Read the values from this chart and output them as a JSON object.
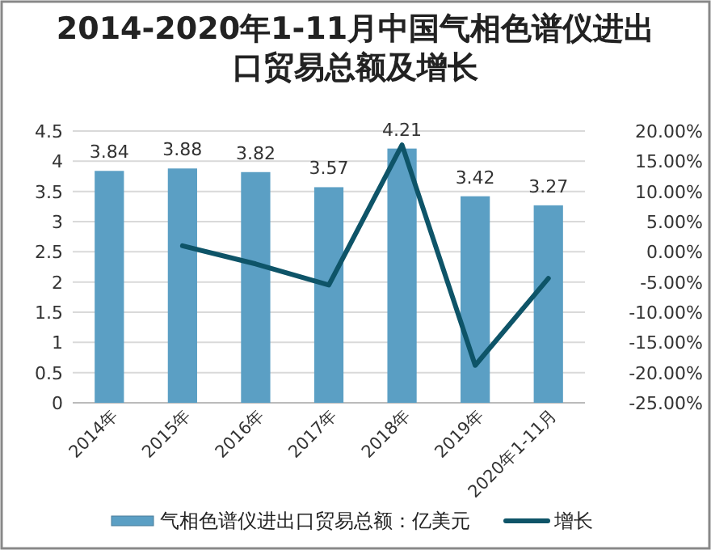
{
  "chart_data": {
    "type": "bar",
    "title": "2014-2020年1-11月中国气相色谱仪进出口贸易总额及增长",
    "categories": [
      "2014年",
      "2015年",
      "2016年",
      "2017年",
      "2018年",
      "2019年",
      "2020年1-11月"
    ],
    "series": [
      {
        "name": "气相色谱仪进出口贸易总额：亿美元",
        "color": "#5b9fc4",
        "values": [
          3.84,
          3.88,
          3.82,
          3.57,
          4.21,
          3.42,
          3.27
        ],
        "value_labels": [
          "3.84",
          "3.88",
          "3.82",
          "3.57",
          "4.21",
          "3.42",
          "3.27"
        ]
      },
      {
        "name": "增长",
        "type": "line",
        "axis": "y2",
        "color": "#0e5468",
        "values": [
          null,
          1.0,
          -2.0,
          -5.5,
          17.7,
          -18.8,
          -4.4
        ]
      }
    ],
    "ylim": [
      0,
      4.5
    ],
    "yticks": [
      0,
      0.5,
      1,
      1.5,
      2,
      2.5,
      3,
      3.5,
      4,
      4.5
    ],
    "y2lim": [
      -25,
      20
    ],
    "y2ticks": [
      {
        "value": -25,
        "label": "-25.00%"
      },
      {
        "value": -20,
        "label": "-20.00%"
      },
      {
        "value": -15,
        "label": "-15.00%"
      },
      {
        "value": -10,
        "label": "-10.00%"
      },
      {
        "value": -5,
        "label": "-5.00%"
      },
      {
        "value": 0,
        "label": "0.00%"
      },
      {
        "value": 5,
        "label": "5.00%"
      },
      {
        "value": 10,
        "label": "10.00%"
      },
      {
        "value": 15,
        "label": "15.00%"
      },
      {
        "value": 20,
        "label": "20.00%"
      }
    ],
    "grid": "y",
    "legend": "bottom",
    "marker": "none"
  }
}
